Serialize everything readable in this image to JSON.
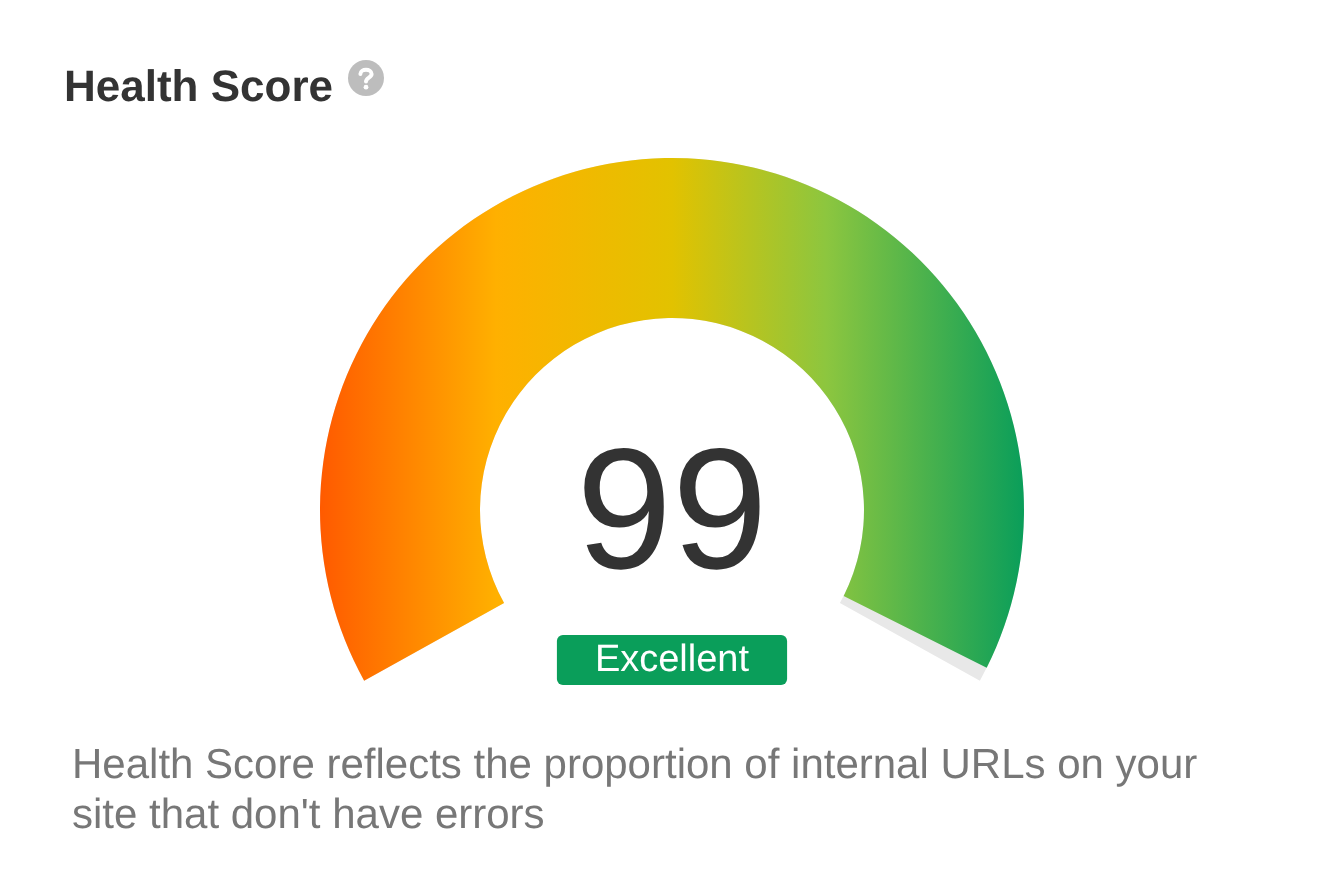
{
  "chart_data": {
    "type": "other",
    "title": "Health Score",
    "categories": [
      "Excellent"
    ],
    "values": [
      99
    ],
    "data_labels": true,
    "colors": [
      "#0a9e5a"
    ],
    "annotations": [
      "Health Score reflects the proportion of internal URLs on your site that don't have errors"
    ]
  }
}
